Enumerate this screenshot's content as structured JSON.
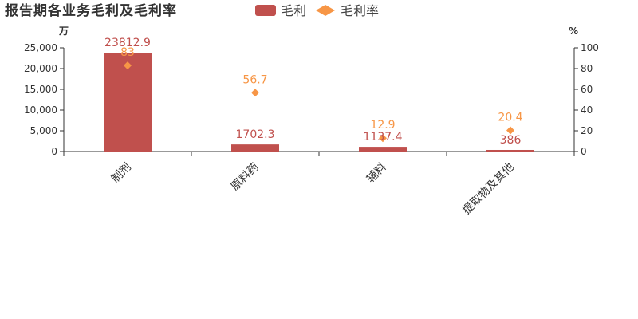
{
  "colors": {
    "bar": "#c0504d",
    "rate": "#f79646"
  },
  "legend": {
    "bar": "毛利",
    "rate": "毛利率"
  },
  "chart_data": {
    "type": "bar",
    "title": "报告期各业务毛利及毛利率",
    "categories": [
      "制剂",
      "原料药",
      "辅料",
      "提取物及其他"
    ],
    "series": [
      {
        "name": "毛利",
        "axis": "left",
        "type": "bar",
        "values": [
          23812.9,
          1702.3,
          1137.4,
          386
        ],
        "labels": [
          "23812.9",
          "1702.3",
          "1137.4",
          "386"
        ]
      },
      {
        "name": "毛利率",
        "axis": "right",
        "type": "scatter",
        "values": [
          83,
          56.7,
          12.9,
          20.4
        ],
        "labels": [
          "83",
          "56.7",
          "12.9",
          "20.4"
        ]
      }
    ],
    "y_left": {
      "unit": "万",
      "ylim": [
        0,
        25000
      ],
      "ticks": [
        0,
        5000,
        10000,
        15000,
        20000,
        25000
      ],
      "tick_labels": [
        "0",
        "5,000",
        "10,000",
        "15,000",
        "20,000",
        "25,000"
      ]
    },
    "y_right": {
      "unit": "%",
      "ylim": [
        0,
        100
      ],
      "ticks": [
        0,
        20,
        40,
        60,
        80,
        100
      ],
      "tick_labels": [
        "0",
        "20",
        "40",
        "60",
        "80",
        "100"
      ]
    },
    "legend_position": "top-center",
    "grid": false
  }
}
